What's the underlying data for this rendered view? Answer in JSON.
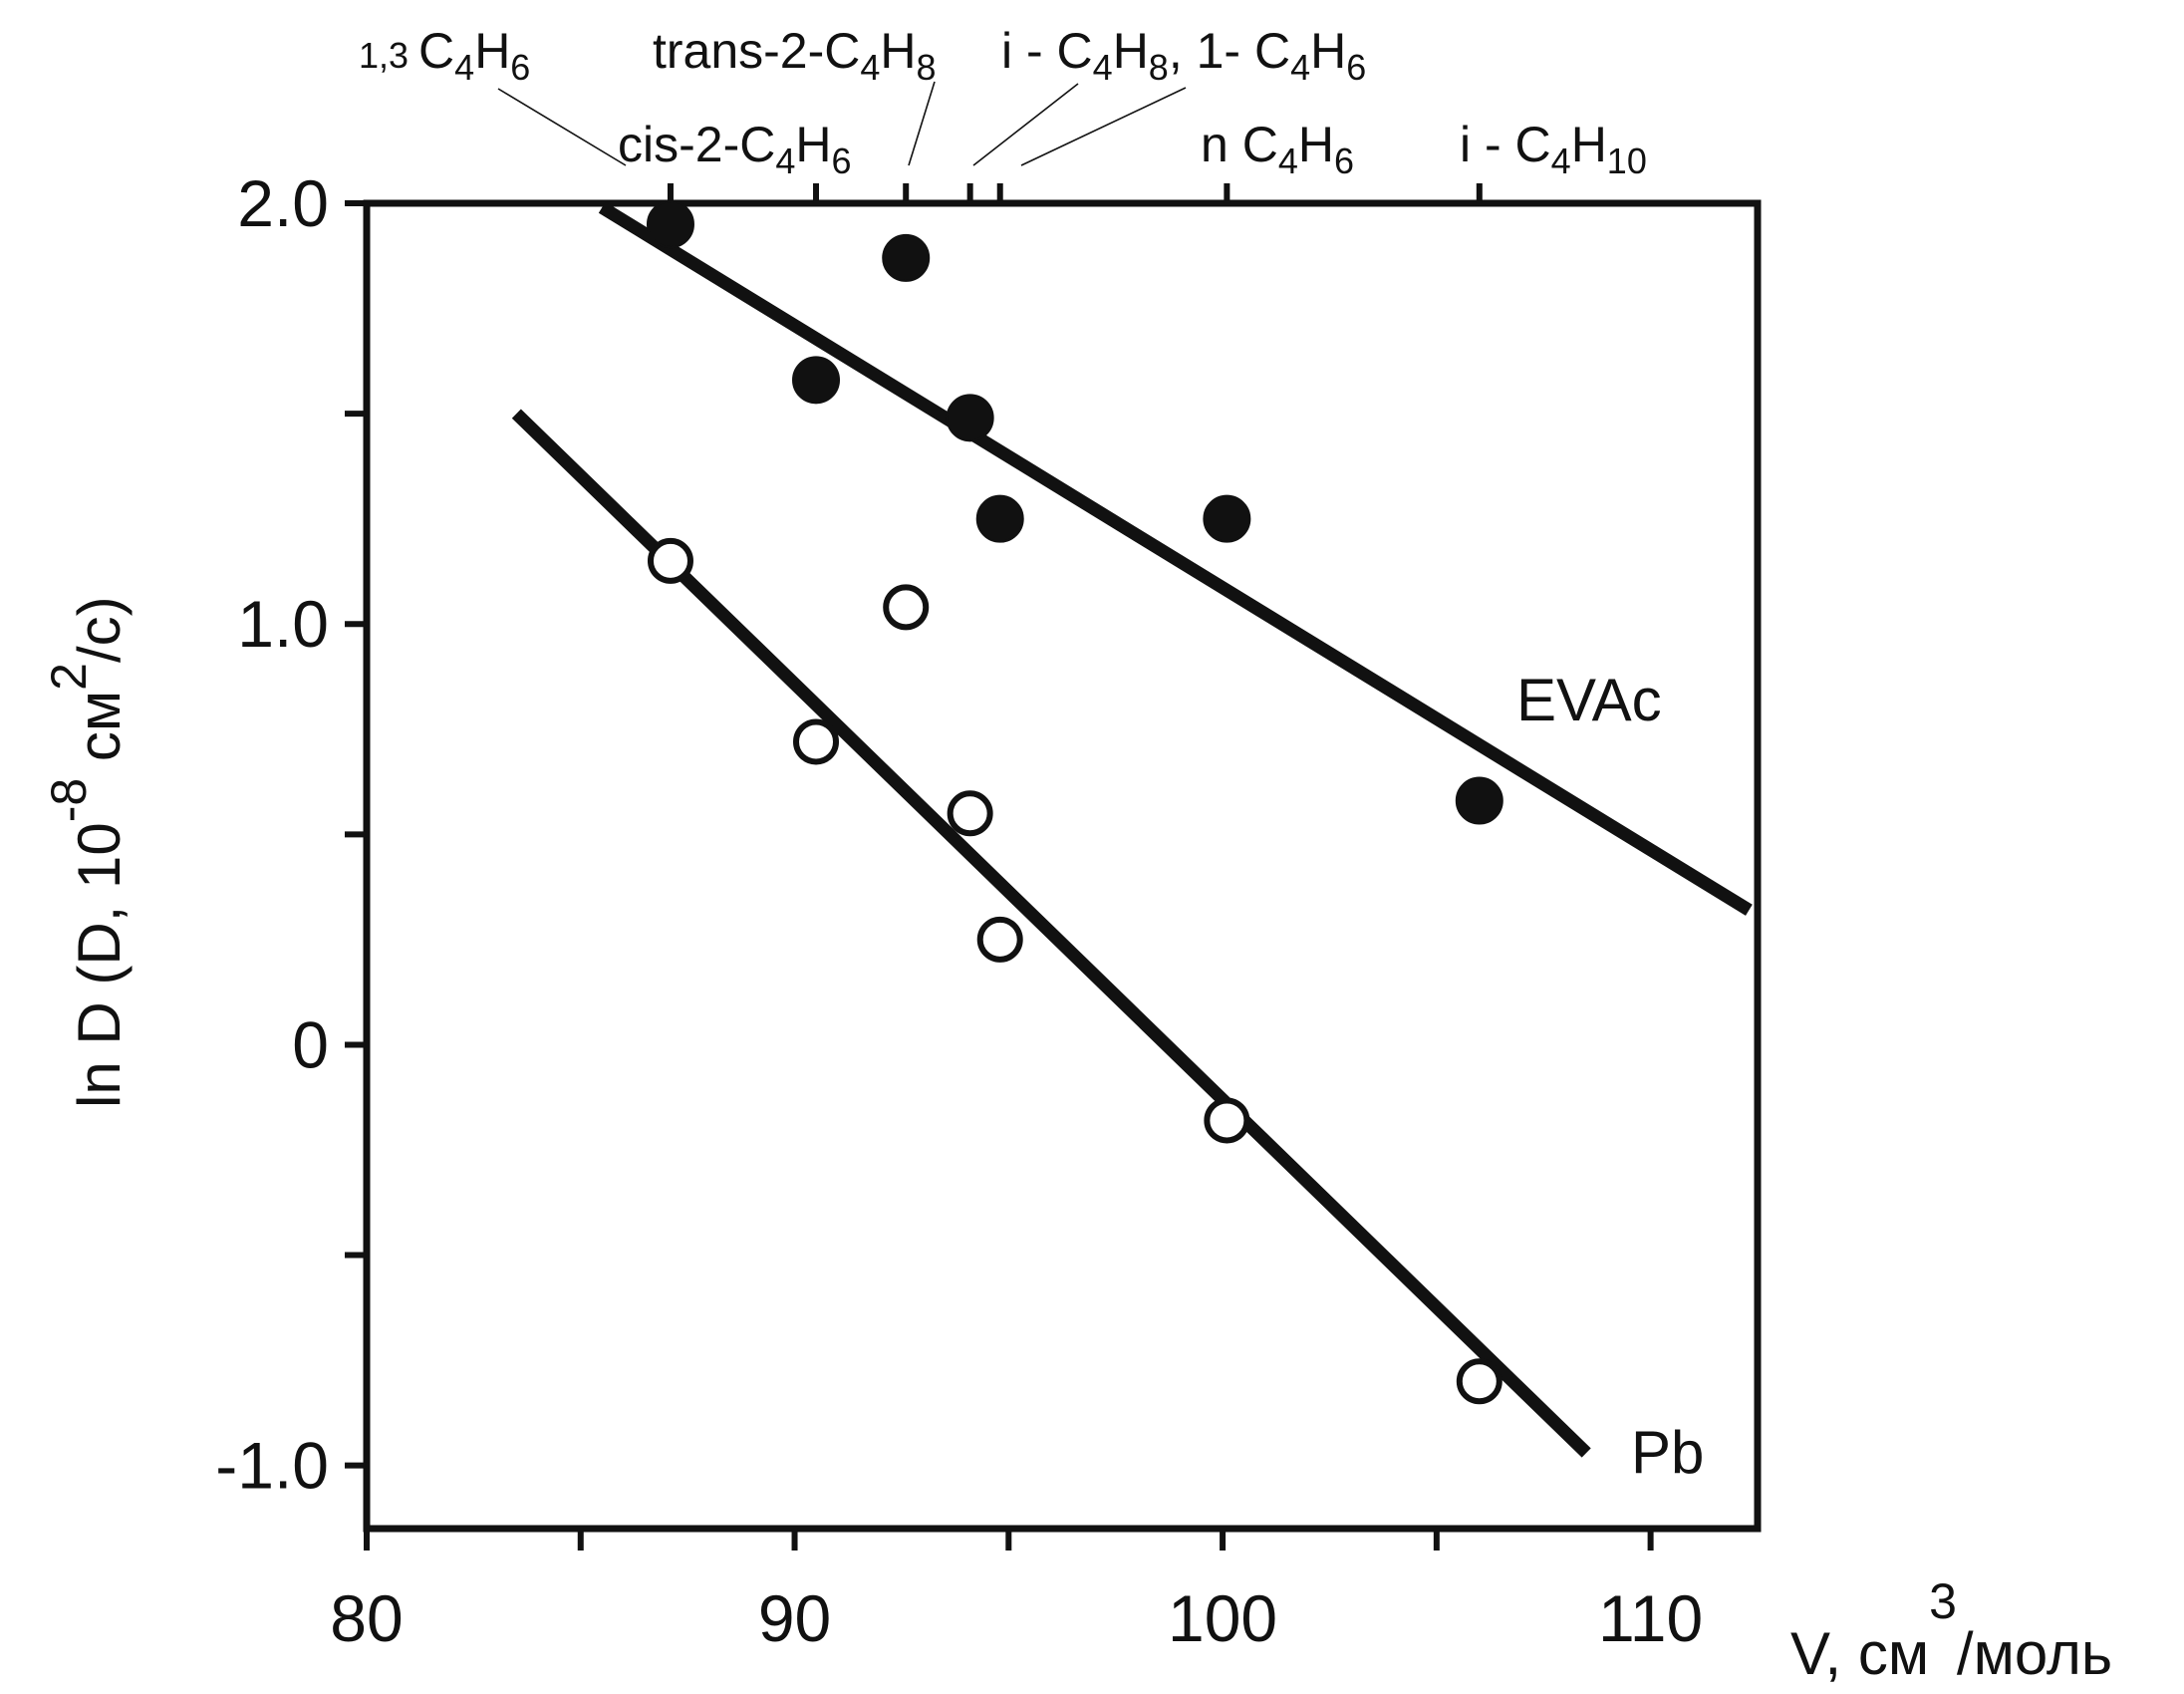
{
  "chart_data": {
    "type": "scatter",
    "xlim": [
      80,
      112.5
    ],
    "ylim": [
      -1.15,
      2.0
    ],
    "x_ticks": [
      80,
      90,
      100,
      110
    ],
    "x_tick_labels": [
      "80",
      "90",
      "100",
      "110"
    ],
    "x_minor_ticks": [
      85,
      95,
      105
    ],
    "y_ticks": [
      -1.0,
      0,
      1.0,
      2.0
    ],
    "y_tick_labels": [
      "-1.0",
      "0",
      "1.0",
      "2.0"
    ],
    "y_minor_ticks": [
      -0.5,
      0.5,
      1.5
    ],
    "xlabel": {
      "main": "V, см",
      "sup": "3",
      "tail": "/моль"
    },
    "ylabel": {
      "p1": "ln D (D, 10",
      "sup1": "-8",
      "p2": " см",
      "sup2": "2",
      "p3": "/c)"
    },
    "grid": false,
    "series": [
      {
        "name": "EVAc",
        "marker": "filled-circle",
        "x": [
          87.1,
          90.5,
          92.6,
          94.1,
          94.8,
          100.1,
          106.0
        ],
        "y": [
          1.95,
          1.58,
          1.87,
          1.49,
          1.25,
          1.25,
          0.58
        ],
        "fit": {
          "x": [
            85.5,
            112.3
          ],
          "y": [
            1.99,
            0.32
          ]
        }
      },
      {
        "name": "Pb",
        "marker": "open-circle",
        "x": [
          87.1,
          90.5,
          92.6,
          94.1,
          94.8,
          100.1,
          106.0
        ],
        "y": [
          1.15,
          0.72,
          1.04,
          0.55,
          0.25,
          -0.18,
          -0.8
        ],
        "fit": {
          "x": [
            83.5,
            108.5
          ],
          "y": [
            1.5,
            -0.97
          ]
        }
      }
    ],
    "top_ticks": [
      87.1,
      90.5,
      92.6,
      94.1,
      94.8,
      100.1,
      106.0
    ],
    "molecule_labels": [
      {
        "id": "13-butadiene",
        "parts": [
          [
            "1,3 ",
            "s"
          ],
          [
            "C",
            "n"
          ],
          [
            "4",
            "sub"
          ],
          [
            "H",
            "n"
          ],
          [
            "6",
            "sub"
          ]
        ],
        "leader_to": 86.1
      },
      {
        "id": "cis-2",
        "parts": [
          [
            "cis-2-C",
            "n"
          ],
          [
            "4",
            "sub"
          ],
          [
            "H",
            "n"
          ],
          [
            "6",
            "sub"
          ]
        ],
        "leader_to": null
      },
      {
        "id": "trans-2",
        "parts": [
          [
            "trans-2-C",
            "n"
          ],
          [
            "4",
            "sub"
          ],
          [
            "H",
            "n"
          ],
          [
            "8",
            "sub"
          ]
        ],
        "leader_to": 92.8
      },
      {
        "id": "iso-butene",
        "parts": [
          [
            "i - C",
            "n"
          ],
          [
            "4",
            "sub"
          ],
          [
            "H",
            "n"
          ],
          [
            "8",
            "sub"
          ],
          [
            ",  1- C",
            "n"
          ],
          [
            "4",
            "sub"
          ],
          [
            "H",
            "n"
          ],
          [
            "6",
            "sub"
          ]
        ],
        "leader_to": 94.2
      },
      {
        "id": "n-butane",
        "parts": [
          [
            "n C",
            "n"
          ],
          [
            "4",
            "sub"
          ],
          [
            "H",
            "n"
          ],
          [
            "6",
            "sub"
          ]
        ],
        "leader_to": null
      },
      {
        "id": "iso-butane",
        "parts": [
          [
            "i - C",
            "n"
          ],
          [
            "4",
            "sub"
          ],
          [
            "H",
            "n"
          ],
          [
            "10",
            "sub"
          ]
        ],
        "leader_to": null
      }
    ],
    "extra_leader_to": 95.1
  }
}
